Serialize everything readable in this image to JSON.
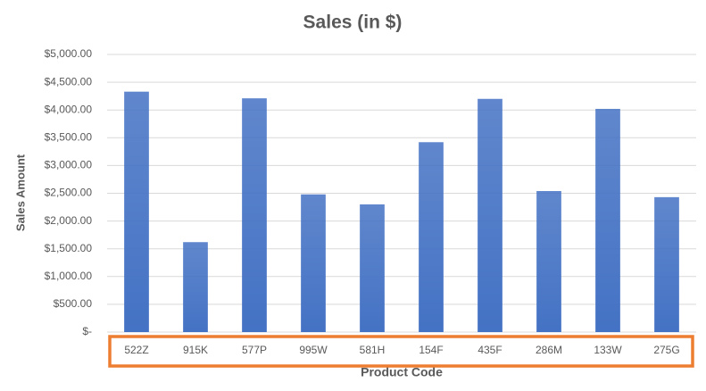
{
  "chart_data": {
    "type": "bar",
    "title": "Sales (in $)",
    "x_label": "Product Code",
    "y_label": "Sales Amount",
    "categories": [
      "522Z",
      "915K",
      "577P",
      "995W",
      "581H",
      "154F",
      "435F",
      "286M",
      "133W",
      "275G"
    ],
    "values": [
      4330,
      1620,
      4210,
      2480,
      2300,
      3420,
      4200,
      2540,
      4020,
      2430
    ],
    "color": "#4472c4",
    "ylim": [
      0,
      5000
    ],
    "yticks": [
      {
        "value": 0,
        "label": "$-"
      },
      {
        "value": 500,
        "label": "$500.00"
      },
      {
        "value": 1000,
        "label": "$1,000.00"
      },
      {
        "value": 1500,
        "label": "$1,500.00"
      },
      {
        "value": 2000,
        "label": "$2,000.00"
      },
      {
        "value": 2500,
        "label": "$2,500.00"
      },
      {
        "value": 3000,
        "label": "$3,000.00"
      },
      {
        "value": 3500,
        "label": "$3,500.00"
      },
      {
        "value": 4000,
        "label": "$4,000.00"
      },
      {
        "value": 4500,
        "label": "$4,500.00"
      },
      {
        "value": 5000,
        "label": "$5,000.00"
      }
    ],
    "grid": true
  }
}
